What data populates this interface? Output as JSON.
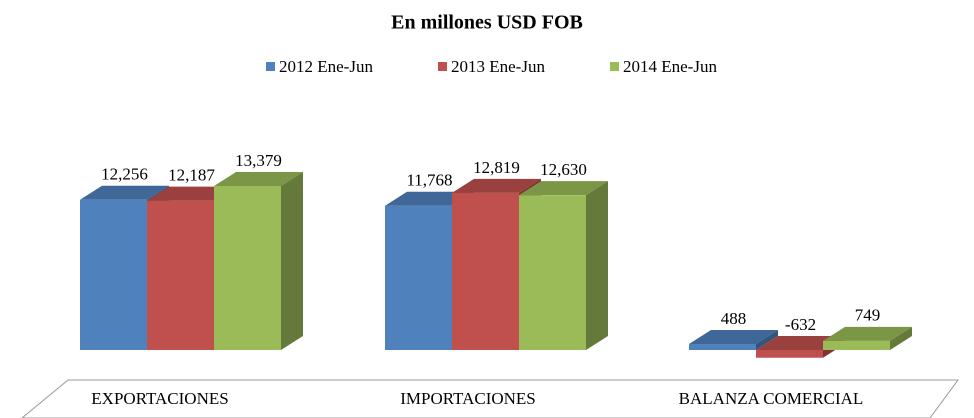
{
  "chart_data": {
    "type": "bar3d",
    "title": "En millones USD FOB",
    "categories": [
      "EXPORTACIONES",
      "IMPORTACIONES",
      "BALANZA COMERCIAL"
    ],
    "series": [
      {
        "name": "2012 Ene-Jun",
        "color": "#4f81bd",
        "values": [
          12256,
          11768,
          488
        ],
        "value_labels": [
          "12,256",
          "11,768",
          "488"
        ]
      },
      {
        "name": "2013 Ene-Jun",
        "color": "#c0504d",
        "values": [
          12187,
          12819,
          -632
        ],
        "value_labels": [
          "12,187",
          "12,819",
          "-632"
        ]
      },
      {
        "name": "2014 Ene-Jun",
        "color": "#9bbb59",
        "values": [
          13379,
          12630,
          749
        ],
        "value_labels": [
          "13,379",
          "12,630",
          "749"
        ]
      }
    ]
  }
}
